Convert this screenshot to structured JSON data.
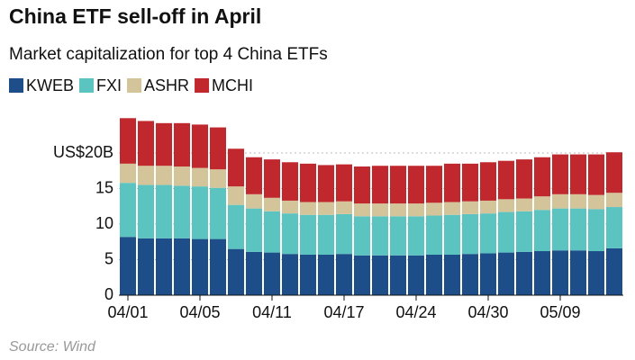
{
  "chart_data": {
    "type": "stacked_bar",
    "title": "China ETF sell-off in April",
    "subtitle": "Market capitalization for top 4 China ETFs",
    "source": "Source: Wind",
    "categories": [
      "04/01",
      null,
      null,
      null,
      "04/05",
      null,
      null,
      null,
      "04/11",
      null,
      null,
      null,
      "04/17",
      null,
      null,
      null,
      "04/24",
      null,
      null,
      null,
      "04/30",
      null,
      null,
      null,
      "05/09",
      null,
      null,
      null
    ],
    "series": [
      {
        "name": "KWEB",
        "color": "#1d4e89",
        "values": [
          8.2,
          8.0,
          8.0,
          8.0,
          7.9,
          7.9,
          6.5,
          6.1,
          6.0,
          5.8,
          5.7,
          5.7,
          5.8,
          5.6,
          5.6,
          5.6,
          5.6,
          5.7,
          5.7,
          5.8,
          5.9,
          6.0,
          6.1,
          6.2,
          6.3,
          6.3,
          6.2,
          6.6
        ]
      },
      {
        "name": "FXI",
        "color": "#5bc4c1",
        "values": [
          7.6,
          7.5,
          7.5,
          7.4,
          7.4,
          7.2,
          6.2,
          6.1,
          5.8,
          5.7,
          5.6,
          5.6,
          5.6,
          5.5,
          5.5,
          5.5,
          5.5,
          5.5,
          5.6,
          5.6,
          5.6,
          5.7,
          5.7,
          5.8,
          5.9,
          5.9,
          5.9,
          5.8
        ]
      },
      {
        "name": "ASHR",
        "color": "#d4c49a",
        "values": [
          2.7,
          2.7,
          2.7,
          2.7,
          2.6,
          2.6,
          2.6,
          2.0,
          1.9,
          1.8,
          1.8,
          1.8,
          1.8,
          1.8,
          1.8,
          1.8,
          1.8,
          1.8,
          1.8,
          1.8,
          1.8,
          1.8,
          1.8,
          1.9,
          2.0,
          2.0,
          2.0,
          2.0
        ]
      },
      {
        "name": "MCHI",
        "color": "#c0282d",
        "values": [
          6.4,
          6.3,
          6.0,
          6.1,
          6.1,
          5.9,
          5.3,
          5.2,
          5.4,
          5.4,
          5.4,
          5.2,
          5.2,
          5.2,
          5.3,
          5.3,
          5.3,
          5.2,
          5.4,
          5.3,
          5.4,
          5.4,
          5.5,
          5.5,
          5.6,
          5.6,
          5.7,
          5.7
        ]
      }
    ],
    "ylim": [
      0,
      25
    ],
    "yticks": [
      0,
      5,
      10,
      15,
      {
        "value": 20,
        "label": "US$20B"
      }
    ],
    "grid": true
  }
}
